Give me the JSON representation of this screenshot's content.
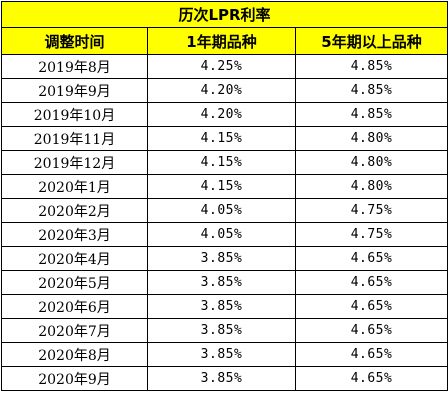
{
  "colors": {
    "header_fill": "#ffff00",
    "border": "#000000",
    "text": "#000000"
  },
  "table": {
    "title": "历次LPR利率",
    "headers": [
      "调整时间",
      "1年期品种",
      "5年期以上品种"
    ],
    "rows": [
      {
        "date": "2019年8月",
        "one_year": "4.25%",
        "five_year": "4.85%"
      },
      {
        "date": "2019年9月",
        "one_year": "4.20%",
        "five_year": "4.85%"
      },
      {
        "date": "2019年10月",
        "one_year": "4.20%",
        "five_year": "4.85%"
      },
      {
        "date": "2019年11月",
        "one_year": "4.15%",
        "five_year": "4.80%"
      },
      {
        "date": "2019年12月",
        "one_year": "4.15%",
        "five_year": "4.80%"
      },
      {
        "date": "2020年1月",
        "one_year": "4.15%",
        "five_year": "4.80%"
      },
      {
        "date": "2020年2月",
        "one_year": "4.05%",
        "five_year": "4.75%"
      },
      {
        "date": "2020年3月",
        "one_year": "4.05%",
        "five_year": "4.75%"
      },
      {
        "date": "2020年4月",
        "one_year": "3.85%",
        "five_year": "4.65%"
      },
      {
        "date": "2020年5月",
        "one_year": "3.85%",
        "five_year": "4.65%"
      },
      {
        "date": "2020年6月",
        "one_year": "3.85%",
        "five_year": "4.65%"
      },
      {
        "date": "2020年7月",
        "one_year": "3.85%",
        "five_year": "4.65%"
      },
      {
        "date": "2020年8月",
        "one_year": "3.85%",
        "five_year": "4.65%"
      },
      {
        "date": "2020年9月",
        "one_year": "3.85%",
        "five_year": "4.65%"
      }
    ]
  }
}
